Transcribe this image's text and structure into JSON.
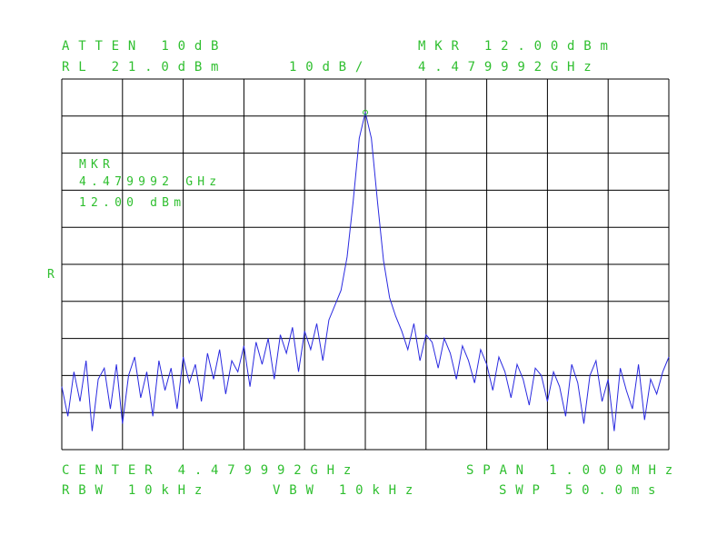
{
  "chart_data": {
    "type": "line",
    "annotations": [
      "ATTEN 10dB",
      "RL 21.0dBm",
      "10dB/",
      "MKR 12.00dBm",
      "4.479992GHz",
      "MKR",
      "4.479992 GHz",
      "12.00 dBm",
      "R",
      "CENTER 4.479992GHz",
      "SPAN 1.000MHz",
      "RBW 10kHz",
      "VBW 10kHz",
      "SWP 50.0ms"
    ],
    "x": [
      4.479492,
      4.479502,
      4.479512,
      4.479522,
      4.479532,
      4.479542,
      4.479552,
      4.479562,
      4.479572,
      4.479582,
      4.479592,
      4.479602,
      4.479612,
      4.479622,
      4.479632,
      4.479642,
      4.479652,
      4.479662,
      4.479672,
      4.479682,
      4.479692,
      4.479702,
      4.479712,
      4.479722,
      4.479732,
      4.479742,
      4.479752,
      4.479762,
      4.479772,
      4.479782,
      4.479792,
      4.479802,
      4.479812,
      4.479822,
      4.479832,
      4.479842,
      4.479852,
      4.479862,
      4.479872,
      4.479882,
      4.479892,
      4.479902,
      4.479912,
      4.479922,
      4.479932,
      4.479942,
      4.479952,
      4.479962,
      4.479972,
      4.479982,
      4.479992,
      4.480002,
      4.480012,
      4.480022,
      4.480032,
      4.480042,
      4.480052,
      4.480062,
      4.480072,
      4.480082,
      4.480092,
      4.480102,
      4.480112,
      4.480122,
      4.480132,
      4.480142,
      4.480152,
      4.480162,
      4.480172,
      4.480182,
      4.480192,
      4.480202,
      4.480212,
      4.480222,
      4.480232,
      4.480242,
      4.480252,
      4.480262,
      4.480272,
      4.480282,
      4.480292,
      4.480302,
      4.480312,
      4.480322,
      4.480332,
      4.480342,
      4.480352,
      4.480362,
      4.480372,
      4.480382,
      4.480392,
      4.480402,
      4.480412,
      4.480422,
      4.480432,
      4.480442,
      4.480452,
      4.480462,
      4.480472,
      4.480482,
      4.480492
    ],
    "values": [
      -62,
      -70,
      -58,
      -66,
      -55,
      -74,
      -60,
      -57,
      -68,
      -56,
      -72,
      -59,
      -54,
      -65,
      -58,
      -70,
      -55,
      -63,
      -57,
      -68,
      -54,
      -61,
      -56,
      -66,
      -53,
      -60,
      -52,
      -64,
      -55,
      -58,
      -51,
      -62,
      -50,
      -56,
      -49,
      -60,
      -48,
      -53,
      -46,
      -58,
      -47,
      -52,
      -45,
      -55,
      -44,
      -40,
      -36,
      -27,
      -12,
      5,
      12,
      5,
      -12,
      -28,
      -38,
      -43,
      -47,
      -52,
      -45,
      -55,
      -48,
      -50,
      -57,
      -49,
      -53,
      -60,
      -51,
      -55,
      -61,
      -52,
      -56,
      -63,
      -54,
      -58,
      -65,
      -56,
      -60,
      -67,
      -57,
      -59,
      -66,
      -58,
      -62,
      -70,
      -56,
      -61,
      -72,
      -59,
      -55,
      -66,
      -60,
      -74,
      -57,
      -63,
      -68,
      -56,
      -71,
      -60,
      -64,
      -58,
      -54
    ],
    "color": "#2a2ae0",
    "marker_index": 50,
    "xlim": [
      4.479492,
      4.480492
    ],
    "xticks": [
      4.479492,
      4.479592,
      4.479692,
      4.479792,
      4.479892,
      4.479992,
      4.480092,
      4.480192,
      4.480292,
      4.480392,
      4.480492
    ],
    "ylim": [
      -79,
      21
    ],
    "yticks": [
      -79,
      -69,
      -59,
      -49,
      -39,
      -29,
      -19,
      -9,
      1,
      11,
      21
    ],
    "grid": true
  }
}
